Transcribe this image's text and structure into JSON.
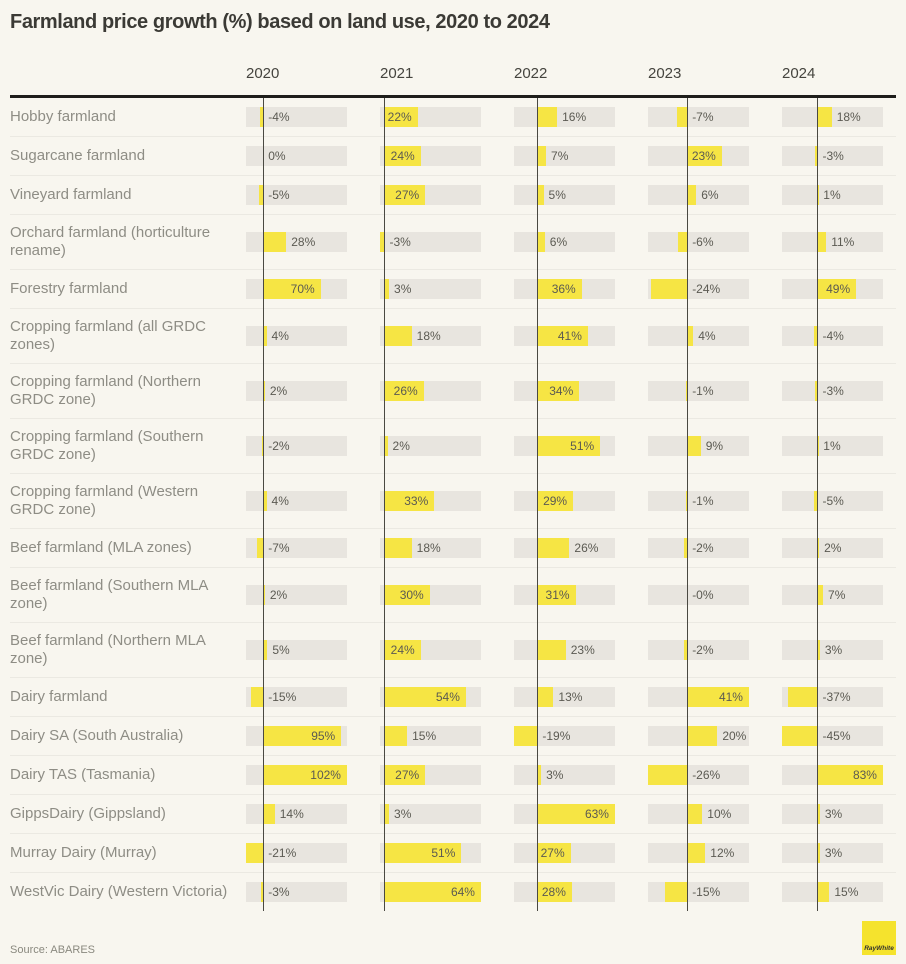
{
  "title": "Farmland price growth (%) based on land use, 2020 to 2024",
  "source": "Source: ABARES",
  "logo_text": "RayWhite",
  "columns": [
    "2020",
    "2021",
    "2022",
    "2023",
    "2024"
  ],
  "colors": {
    "background": "#f8f6ef",
    "bar_yellow": "#f6e544",
    "track_grey": "#e8e5df",
    "zero_line": "#4a4942",
    "header_rule": "#1e1d1a",
    "logo_yellow": "#f5e32d"
  },
  "rows": [
    {
      "label": "Hobby farmland",
      "values": [
        "-4%",
        "22%",
        "16%",
        "-7%",
        "18%"
      ]
    },
    {
      "label": "Sugarcane farmland",
      "values": [
        "0%",
        "24%",
        "7%",
        "23%",
        "-3%"
      ]
    },
    {
      "label": "Vineyard farmland",
      "values": [
        "-5%",
        "27%",
        "5%",
        "6%",
        "1%"
      ]
    },
    {
      "label": "Orchard farmland (horticulture rename)",
      "values": [
        "28%",
        "-3%",
        "6%",
        "-6%",
        "11%"
      ]
    },
    {
      "label": "Forestry farmland",
      "values": [
        "70%",
        "3%",
        "36%",
        "-24%",
        "49%"
      ]
    },
    {
      "label": "Cropping farmland (all GRDC zones)",
      "values": [
        "4%",
        "18%",
        "41%",
        "4%",
        "-4%"
      ]
    },
    {
      "label": "Cropping farmland (Northern GRDC zone)",
      "values": [
        "2%",
        "26%",
        "34%",
        "-1%",
        "-3%"
      ]
    },
    {
      "label": "Cropping farmland (Southern GRDC zone)",
      "values": [
        "-2%",
        "2%",
        "51%",
        "9%",
        "1%"
      ]
    },
    {
      "label": "Cropping farmland (Western GRDC zone)",
      "values": [
        "4%",
        "33%",
        "29%",
        "-1%",
        "-5%"
      ]
    },
    {
      "label": "Beef farmland (MLA zones)",
      "values": [
        "-7%",
        "18%",
        "26%",
        "-2%",
        "2%"
      ]
    },
    {
      "label": "Beef farmland (Southern MLA zone)",
      "values": [
        "2%",
        "30%",
        "31%",
        "-0%",
        "7%"
      ]
    },
    {
      "label": "Beef farmland (Northern MLA zone)",
      "values": [
        "5%",
        "24%",
        "23%",
        "-2%",
        "3%"
      ]
    },
    {
      "label": "Dairy farmland",
      "values": [
        "-15%",
        "54%",
        "13%",
        "41%",
        "-37%"
      ]
    },
    {
      "label": "Dairy SA (South Australia)",
      "values": [
        "95%",
        "15%",
        "-19%",
        "20%",
        "-45%"
      ]
    },
    {
      "label": "Dairy TAS (Tasmania)",
      "values": [
        "102%",
        "27%",
        "3%",
        "-26%",
        "83%"
      ]
    },
    {
      "label": "GippsDairy (Gippsland)",
      "values": [
        "14%",
        "3%",
        "63%",
        "10%",
        "3%"
      ]
    },
    {
      "label": "Murray Dairy (Murray)",
      "values": [
        "-21%",
        "51%",
        "27%",
        "12%",
        "3%"
      ]
    },
    {
      "label": "WestVic Dairy (Western Victoria)",
      "values": [
        "-3%",
        "64%",
        "28%",
        "-15%",
        "15%"
      ]
    }
  ],
  "chart_data": {
    "type": "bar",
    "title": "Farmland price growth (%) based on land use, 2020 to 2024",
    "categories": [
      "Hobby farmland",
      "Sugarcane farmland",
      "Vineyard farmland",
      "Orchard farmland (horticulture rename)",
      "Forestry farmland",
      "Cropping farmland (all GRDC zones)",
      "Cropping farmland (Northern GRDC zone)",
      "Cropping farmland (Southern GRDC zone)",
      "Cropping farmland (Western GRDC zone)",
      "Beef farmland (MLA zones)",
      "Beef farmland (Southern MLA zone)",
      "Beef farmland (Northern MLA zone)",
      "Dairy farmland",
      "Dairy SA (South Australia)",
      "Dairy TAS (Tasmania)",
      "GippsDairy (Gippsland)",
      "Murray Dairy (Murray)",
      "WestVic Dairy (Western Victoria)"
    ],
    "series": [
      {
        "name": "2020",
        "values": [
          -4,
          0,
          -5,
          28,
          70,
          4,
          2,
          -2,
          4,
          -7,
          2,
          5,
          -15,
          95,
          102,
          14,
          -21,
          -3
        ]
      },
      {
        "name": "2021",
        "values": [
          22,
          24,
          27,
          -3,
          3,
          18,
          26,
          2,
          33,
          18,
          30,
          24,
          54,
          15,
          27,
          3,
          51,
          64
        ]
      },
      {
        "name": "2022",
        "values": [
          16,
          7,
          5,
          6,
          36,
          41,
          34,
          51,
          29,
          26,
          31,
          23,
          13,
          -19,
          3,
          63,
          27,
          28
        ]
      },
      {
        "name": "2023",
        "values": [
          -7,
          23,
          6,
          -6,
          -24,
          4,
          -1,
          9,
          -1,
          -2,
          0,
          -2,
          41,
          20,
          -26,
          10,
          12,
          -15
        ]
      },
      {
        "name": "2024",
        "values": [
          18,
          -3,
          1,
          11,
          49,
          -4,
          -3,
          1,
          -5,
          2,
          7,
          3,
          -37,
          -45,
          83,
          3,
          3,
          15
        ]
      }
    ],
    "unit": "%",
    "layout": "each year column is an independent mini bar chart normalized to its own min/max; negative bars extend left of a zero baseline, positive bars right; value labels shown on each bar",
    "source": "Source: ABARES"
  }
}
